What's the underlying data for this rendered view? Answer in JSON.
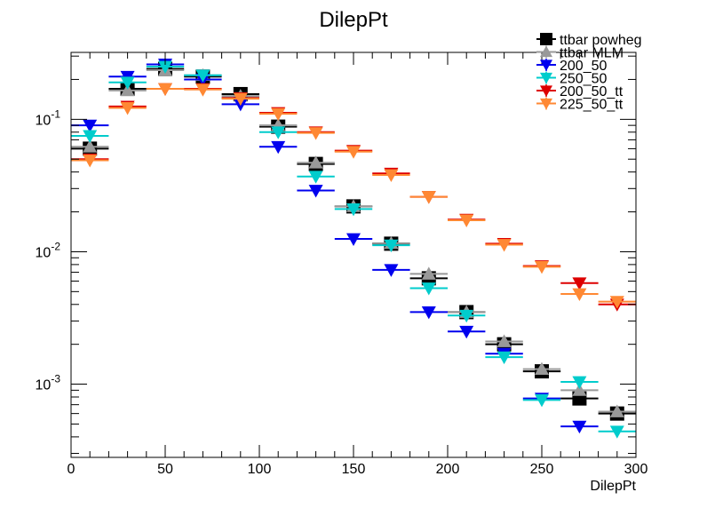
{
  "chart_data": {
    "type": "scatter",
    "title": "DilepPt",
    "xlabel": "DilepPt",
    "ylabel": "",
    "xlim": [
      0,
      300
    ],
    "ylim": [
      0.00028,
      0.32
    ],
    "ylog": true,
    "grid": false,
    "legend_position": "top-right",
    "x": [
      10,
      30,
      50,
      70,
      90,
      110,
      130,
      150,
      170,
      190,
      210,
      230,
      250,
      270,
      290
    ],
    "bin_half_width": 10,
    "x_ticks": [
      "0",
      "50",
      "100",
      "150",
      "200",
      "250",
      "300"
    ],
    "y_ticks": [
      {
        "base": "10",
        "exp": "-1"
      },
      {
        "base": "10",
        "exp": "-2"
      },
      {
        "base": "10",
        "exp": "-3"
      }
    ],
    "series": [
      {
        "name": "ttbar powheg",
        "color": "#000000",
        "marker": "square",
        "values": [
          0.06,
          0.17,
          0.24,
          0.21,
          0.155,
          0.088,
          0.046,
          0.022,
          0.0115,
          0.0063,
          0.0035,
          0.002,
          0.00125,
          0.00078,
          0.0006
        ]
      },
      {
        "name": "ttbar MLM",
        "color": "#999999",
        "marker": "triangle-up",
        "values": [
          0.062,
          0.165,
          0.235,
          0.215,
          0.15,
          0.09,
          0.047,
          0.022,
          0.0116,
          0.0068,
          0.0035,
          0.0021,
          0.0013,
          0.0009,
          0.00062
        ]
      },
      {
        "name": "200_50",
        "color": "#0000ee",
        "marker": "triangle-down",
        "values": [
          0.09,
          0.21,
          0.26,
          0.2,
          0.13,
          0.062,
          0.029,
          0.0125,
          0.0073,
          0.0035,
          0.0025,
          0.0017,
          0.00078,
          0.00048,
          0.00026
        ]
      },
      {
        "name": "250_50",
        "color": "#00cccc",
        "marker": "triangle-down",
        "values": [
          0.075,
          0.19,
          0.25,
          0.215,
          0.145,
          0.08,
          0.037,
          0.021,
          0.0112,
          0.0053,
          0.0033,
          0.0016,
          0.00076,
          0.00104,
          0.00044
        ]
      },
      {
        "name": "200_50_tt",
        "color": "#dd0000",
        "marker": "triangle-down",
        "values": [
          0.05,
          0.125,
          0.17,
          0.17,
          0.145,
          0.112,
          0.08,
          0.058,
          0.039,
          0.026,
          0.0175,
          0.0115,
          0.0078,
          0.0058,
          0.004
        ]
      },
      {
        "name": "225_50_tt",
        "color": "#ff8833",
        "marker": "triangle-down",
        "values": [
          0.049,
          0.122,
          0.17,
          0.168,
          0.143,
          0.11,
          0.079,
          0.057,
          0.038,
          0.026,
          0.0173,
          0.0113,
          0.0077,
          0.0048,
          0.0042
        ]
      }
    ]
  }
}
